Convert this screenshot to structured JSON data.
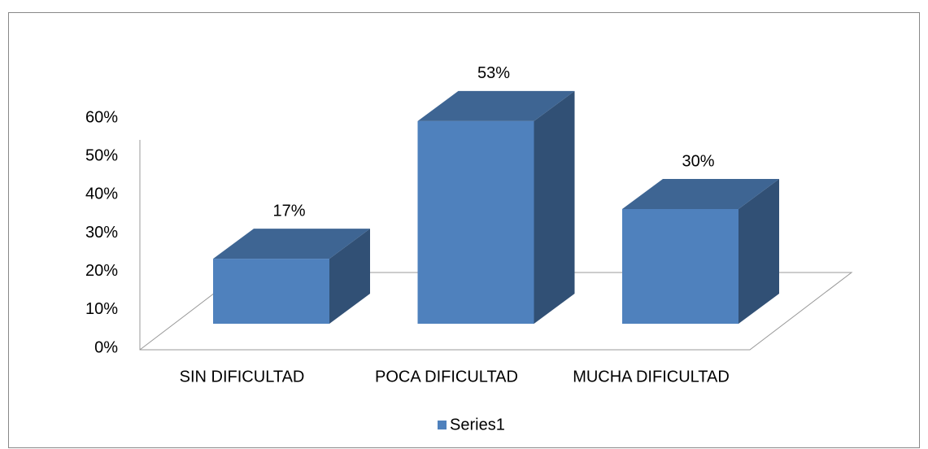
{
  "chart_data": {
    "type": "bar3d",
    "categories": [
      "SIN DIFICULTAD",
      "POCA DIFICULTAD",
      "MUCHA DIFICULTAD"
    ],
    "series": [
      {
        "name": "Series1",
        "color": "#4f81bd",
        "values": [
          17,
          53,
          30
        ],
        "value_labels": [
          "17%",
          "53%",
          "30%"
        ]
      }
    ],
    "ylim": [
      0,
      60
    ],
    "yticks": [
      {
        "value": 0,
        "label": "0%"
      },
      {
        "value": 10,
        "label": "10%"
      },
      {
        "value": 20,
        "label": "20%"
      },
      {
        "value": 30,
        "label": "30%"
      },
      {
        "value": 40,
        "label": "40%"
      },
      {
        "value": 50,
        "label": "50%"
      },
      {
        "value": 60,
        "label": "60%"
      }
    ],
    "legend": "bottom"
  }
}
